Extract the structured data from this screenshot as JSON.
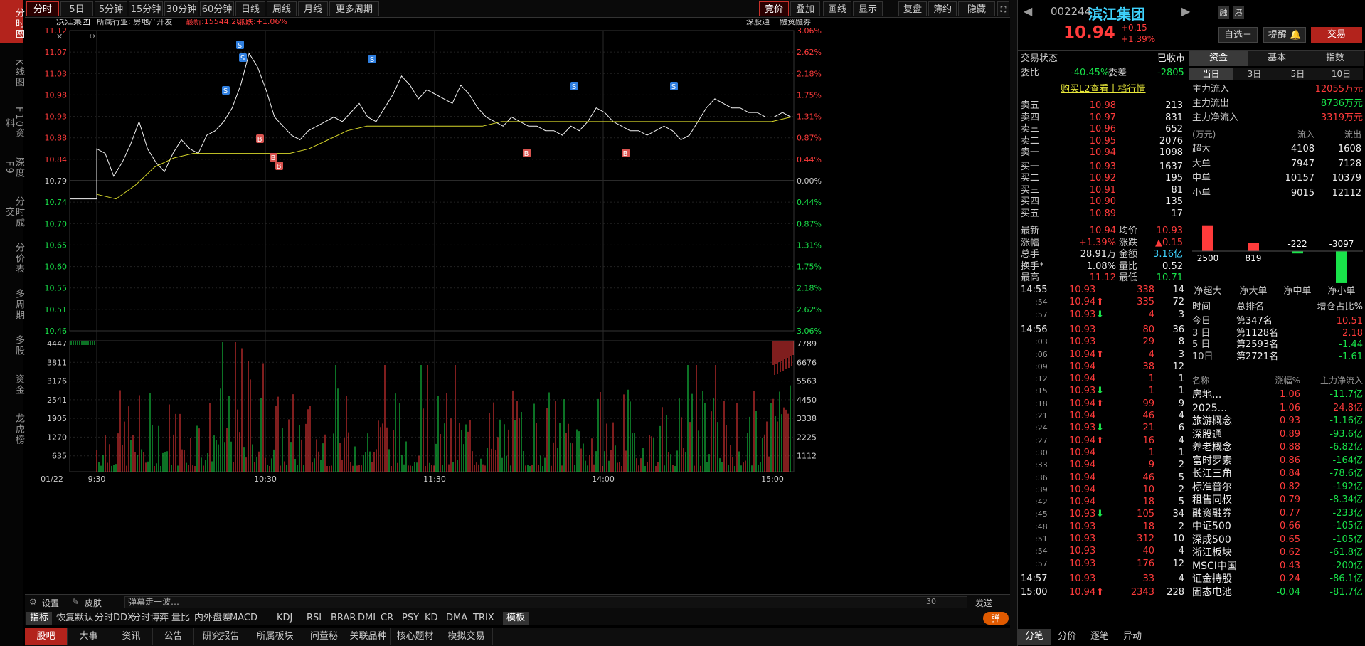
{
  "left_nav": [
    "分时图",
    "K线图",
    "F10资料",
    "深度F9",
    "分时成交",
    "分价表",
    "多周期",
    "多股",
    "资金",
    "龙虎榜"
  ],
  "toolbar": {
    "periods": [
      "分时",
      "5日",
      "5分钟",
      "15分钟",
      "30分钟",
      "60分钟",
      "日线",
      "周线",
      "月线",
      "更多周期"
    ],
    "right": [
      "竞价",
      "叠加",
      "画线",
      "显示",
      "复盘",
      "簿约",
      "隐藏"
    ]
  },
  "chart_header": {
    "name": "滨江集团",
    "industry": "所属行业: 房地产开发",
    "latest": "最新:15544.28",
    "change": "涨跌:+1.06%",
    "right1": "深股通",
    "right2": "融资融券"
  },
  "chart_data": {
    "type": "line",
    "title": "滨江集团",
    "time_labels": [
      "01/22",
      "9:30",
      "10:30",
      "11:30",
      "14:00",
      "15:00"
    ],
    "y_left": [
      "11.12",
      "11.07",
      "11.03",
      "10.98",
      "10.93",
      "10.88",
      "10.84",
      "10.79",
      "10.74",
      "10.70",
      "10.65",
      "10.60",
      "10.55",
      "10.51",
      "10.46"
    ],
    "y_right": [
      "3.06%",
      "2.62%",
      "2.18%",
      "1.75%",
      "1.31%",
      "0.87%",
      "0.44%",
      "0.00%",
      "0.44%",
      "0.87%",
      "1.31%",
      "1.75%",
      "2.18%",
      "2.62%",
      "3.06%"
    ],
    "ylim": [
      10.46,
      11.12
    ],
    "prev_close": 10.79,
    "price": [
      10.86,
      10.85,
      10.8,
      10.83,
      10.87,
      10.92,
      10.86,
      10.83,
      10.81,
      10.85,
      10.88,
      10.86,
      10.85,
      10.89,
      10.9,
      10.92,
      10.95,
      11.0,
      11.07,
      11.04,
      10.99,
      10.93,
      10.91,
      10.89,
      10.88,
      10.9,
      10.91,
      10.92,
      10.93,
      10.92,
      10.94,
      10.96,
      10.93,
      10.92,
      10.95,
      10.98,
      11.02,
      11.0,
      10.97,
      10.99,
      10.98,
      10.97,
      10.96,
      11.0,
      10.98,
      10.95,
      10.93,
      10.92,
      10.91,
      10.93,
      10.92,
      10.91,
      10.91,
      10.9,
      10.9,
      10.89,
      10.91,
      10.9,
      10.92,
      10.95,
      10.94,
      10.92,
      10.91,
      10.9,
      10.9,
      10.89,
      10.9,
      10.91,
      10.9,
      10.88,
      10.89,
      10.92,
      10.95,
      10.97,
      10.96,
      10.95,
      10.95,
      10.94,
      10.94,
      10.93,
      10.93,
      10.94,
      10.93
    ],
    "avg": [
      10.76,
      10.75,
      10.78,
      10.82,
      10.84,
      10.85,
      10.85,
      10.85,
      10.85,
      10.85,
      10.85,
      10.86,
      10.88,
      10.9,
      10.91,
      10.91,
      10.91,
      10.91,
      10.91,
      10.91,
      10.91,
      10.92,
      10.92,
      10.92,
      10.92,
      10.92,
      10.92,
      10.92,
      10.92,
      10.92,
      10.92,
      10.92,
      10.92,
      10.92,
      10.92,
      10.92,
      10.93
    ],
    "vol_left": [
      "4447",
      "3811",
      "3176",
      "2541",
      "1905",
      "1270",
      "635"
    ],
    "vol_right": [
      "7789",
      "6676",
      "5563",
      "4450",
      "3338",
      "2225",
      "1112"
    ]
  },
  "bottom_bar": {
    "settings": "设置",
    "skin": "皮肤",
    "danmu": "弹幕走一波…",
    "count": "30",
    "send": "发送"
  },
  "indicators": [
    "指标",
    "恢复默认",
    "分时DDX",
    "分时博弈",
    "量比",
    "内外盘差",
    "MACD",
    "KDJ",
    "RSI",
    "BRAR",
    "DMI",
    "CR",
    "PSY",
    "KD",
    "DMA",
    "TRIX",
    "模板"
  ],
  "indicator_toggle": "弹",
  "bottom_tabs": [
    "股吧",
    "大事",
    "资讯",
    "公告",
    "研究报告",
    "所属板块",
    "问董秘",
    "关联品种",
    "核心题材",
    "模拟交易"
  ],
  "stock": {
    "code": "002244",
    "name": "滨江集团",
    "price": "10.94",
    "chg": "+0.15",
    "pct": "+1.39%",
    "tag1": "融",
    "tag2": "港",
    "btn_watch": "自选－",
    "btn_alert": "提醒",
    "btn_trade": "交易"
  },
  "status": {
    "label": "交易状态",
    "value": "已收市",
    "wb_label": "委比",
    "wb": "-40.45%",
    "wc_label": "委差",
    "wc": "-2805",
    "l2": "购买L2查看十档行情"
  },
  "asks": [
    [
      "卖五",
      "10.98",
      "213"
    ],
    [
      "卖四",
      "10.97",
      "831"
    ],
    [
      "卖三",
      "10.96",
      "652"
    ],
    [
      "卖二",
      "10.95",
      "2076"
    ],
    [
      "卖一",
      "10.94",
      "1098"
    ]
  ],
  "bids": [
    [
      "买一",
      "10.93",
      "1637"
    ],
    [
      "买二",
      "10.92",
      "195"
    ],
    [
      "买三",
      "10.91",
      "81"
    ],
    [
      "买四",
      "10.90",
      "135"
    ],
    [
      "买五",
      "10.89",
      "17"
    ]
  ],
  "quote": [
    [
      "最新",
      "10.94",
      "均价",
      "10.93"
    ],
    [
      "涨幅",
      "+1.39%",
      "涨跌",
      "▲0.15"
    ],
    [
      "总手",
      "28.91万",
      "金额",
      "3.16亿"
    ],
    [
      "换手*",
      "1.08%",
      "量比",
      "0.52"
    ],
    [
      "最高",
      "11.12",
      "最低",
      "10.71"
    ]
  ],
  "ticks": [
    [
      "14:55",
      "10.93",
      "",
      "338",
      "14"
    ],
    [
      ":54",
      "10.94",
      "up",
      "335",
      "72"
    ],
    [
      ":57",
      "10.93",
      "dn",
      "4",
      "3"
    ],
    [
      "14:56",
      "10.93",
      "",
      "80",
      "36"
    ],
    [
      ":03",
      "10.93",
      "",
      "29",
      "8"
    ],
    [
      ":06",
      "10.94",
      "up",
      "4",
      "3"
    ],
    [
      ":09",
      "10.94",
      "",
      "38",
      "12"
    ],
    [
      ":12",
      "10.94",
      "",
      "1",
      "1"
    ],
    [
      ":15",
      "10.93",
      "dn",
      "1",
      "1"
    ],
    [
      ":18",
      "10.94",
      "up",
      "99",
      "9"
    ],
    [
      ":21",
      "10.94",
      "",
      "46",
      "4"
    ],
    [
      ":24",
      "10.93",
      "dn",
      "21",
      "6"
    ],
    [
      ":27",
      "10.94",
      "up",
      "16",
      "4"
    ],
    [
      ":30",
      "10.94",
      "",
      "1",
      "1"
    ],
    [
      ":33",
      "10.94",
      "",
      "9",
      "2"
    ],
    [
      ":36",
      "10.94",
      "",
      "46",
      "5"
    ],
    [
      ":39",
      "10.94",
      "",
      "10",
      "2"
    ],
    [
      ":42",
      "10.94",
      "",
      "18",
      "5"
    ],
    [
      ":45",
      "10.93",
      "dn",
      "105",
      "34"
    ],
    [
      ":48",
      "10.93",
      "",
      "18",
      "2"
    ],
    [
      ":51",
      "10.93",
      "",
      "312",
      "10"
    ],
    [
      ":54",
      "10.93",
      "",
      "40",
      "4"
    ],
    [
      ":57",
      "10.93",
      "",
      "176",
      "12"
    ],
    [
      "14:57",
      "10.93",
      "",
      "33",
      "4"
    ],
    [
      "15:00",
      "10.94",
      "up",
      "2343",
      "228"
    ]
  ],
  "tick_tabs": [
    "分笔",
    "分价",
    "逐笔",
    "异动"
  ],
  "fund_tabs": [
    "资金",
    "基本",
    "指数"
  ],
  "fund_periods": [
    "当日",
    "3日",
    "5日",
    "10日"
  ],
  "fund_summary": [
    [
      "主力流入",
      "12055万元",
      "red"
    ],
    [
      "主力流出",
      "8736万元",
      "grn"
    ],
    [
      "主力净流入",
      "3319万元",
      "red"
    ]
  ],
  "fund_table_head": [
    "(万元)",
    "流入",
    "流出"
  ],
  "fund_table": [
    [
      "超大",
      "4108",
      "1608"
    ],
    [
      "大单",
      "7947",
      "7128"
    ],
    [
      "中单",
      "10157",
      "10379"
    ],
    [
      "小单",
      "9015",
      "12112"
    ]
  ],
  "net_bars": {
    "values": [
      "2500",
      "819",
      "-222",
      "-3097"
    ],
    "labels": [
      "净超大",
      "净大单",
      "净中单",
      "净小单"
    ]
  },
  "rank_head": [
    "时间",
    "总排名",
    "增仓占比%"
  ],
  "rank": [
    [
      "今日",
      "第347名",
      "10.51",
      "red"
    ],
    [
      "3 日",
      "第1128名",
      "2.18",
      "red"
    ],
    [
      "5 日",
      "第2593名",
      "-1.44",
      "grn"
    ],
    [
      "10日",
      "第2721名",
      "-1.61",
      "grn"
    ]
  ],
  "sector_head": [
    "名称",
    "涨幅%",
    "主力净流入"
  ],
  "sectors": [
    [
      "房地...",
      "1.06",
      "-11.7亿"
    ],
    [
      "2025...",
      "1.06",
      "24.8亿"
    ],
    [
      "旅游概念",
      "0.93",
      "-1.16亿"
    ],
    [
      "深股通",
      "0.89",
      "-93.6亿"
    ],
    [
      "养老概念",
      "0.88",
      "-6.82亿"
    ],
    [
      "富时罗素",
      "0.86",
      "-164亿"
    ],
    [
      "长江三角",
      "0.84",
      "-78.6亿"
    ],
    [
      "标准普尔",
      "0.82",
      "-192亿"
    ],
    [
      "租售同权",
      "0.79",
      "-8.34亿"
    ],
    [
      "融资融券",
      "0.77",
      "-233亿"
    ],
    [
      "中证500",
      "0.66",
      "-105亿"
    ],
    [
      "深成500",
      "0.65",
      "-105亿"
    ],
    [
      "浙江板块",
      "0.62",
      "-61.8亿"
    ],
    [
      "MSCI中国",
      "0.43",
      "-200亿"
    ],
    [
      "证金持股",
      "0.24",
      "-86.1亿"
    ],
    [
      "固态电池",
      "-0.04",
      "-81.7亿"
    ]
  ],
  "colors": {
    "red": "#ff3b3b",
    "green": "#19e34a",
    "yellow": "#e8e83a",
    "accent": "#b3231c"
  }
}
